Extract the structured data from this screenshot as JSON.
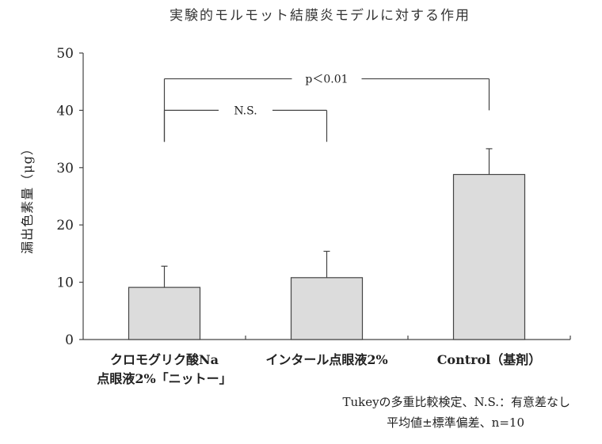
{
  "chart_data": {
    "type": "bar",
    "title": "実験的モルモット結膜炎モデルに対する作用",
    "ylabel": "漏出色素量（μg）",
    "xlabel": "",
    "ylim": [
      0,
      50
    ],
    "yticks": [
      0,
      10,
      20,
      30,
      40,
      50
    ],
    "categories": [
      [
        "クロモグリク酸Na",
        "点眼液2%「ニットー」"
      ],
      [
        "インタール点眼液2%"
      ],
      [
        "Control（基剤）"
      ]
    ],
    "values": [
      9.1,
      10.8,
      28.8
    ],
    "errors": [
      3.7,
      4.6,
      4.5
    ],
    "significance": [
      {
        "label": "p＜0.01",
        "from": 0,
        "to": 2,
        "y": 45.5,
        "drop_from": 34.5,
        "drop_to": 40.0
      },
      {
        "label": "N.S.",
        "from": 0,
        "to": 1,
        "y": 40.0,
        "drop_from": 34.5,
        "drop_to": 34.5
      }
    ],
    "grid": false,
    "footnotes": [
      "Tukeyの多重比較検定、N.S.：有意差なし",
      "平均値±標準偏差、n=10"
    ]
  },
  "colors": {
    "bar_fill": "#dcdcdc",
    "axis": "#444444"
  }
}
